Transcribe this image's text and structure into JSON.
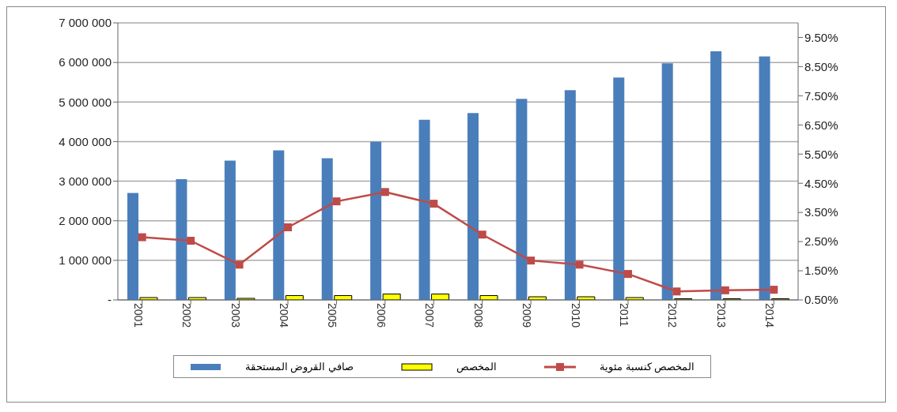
{
  "chart_data": {
    "type": "bar",
    "categories": [
      "2001",
      "2002",
      "2003",
      "2004",
      "2005",
      "2006",
      "2007",
      "2008",
      "2009",
      "2010",
      "2011",
      "2012",
      "2013",
      "2014"
    ],
    "series": [
      {
        "name": "صافي القروض المستحقة",
        "color": "#4a7ebb",
        "values": [
          2700000,
          3050000,
          3520000,
          3780000,
          3580000,
          4000000,
          4550000,
          4720000,
          5080000,
          5300000,
          5620000,
          5980000,
          6280000,
          6150000
        ]
      },
      {
        "name": "المخصص",
        "color": "#ffff00",
        "values": [
          60000,
          60000,
          40000,
          110000,
          110000,
          150000,
          150000,
          110000,
          80000,
          80000,
          60000,
          30000,
          30000,
          30000
        ]
      },
      {
        "name": "المخصص كنسبة مئوية",
        "type": "line",
        "axis": "y2",
        "color": "#be4b48",
        "marker": "square",
        "values": [
          2.65,
          2.53,
          1.71,
          2.99,
          3.88,
          4.2,
          3.8,
          2.74,
          1.85,
          1.71,
          1.39,
          0.79,
          0.83,
          0.85
        ]
      }
    ],
    "ylim": [
      0,
      7000000
    ],
    "yticks": [
      {
        "value": 0,
        "label": "-"
      },
      {
        "value": 1000000,
        "label": "1 000 000"
      },
      {
        "value": 2000000,
        "label": "2 000 000"
      },
      {
        "value": 3000000,
        "label": "3 000 000"
      },
      {
        "value": 4000000,
        "label": "4 000 000"
      },
      {
        "value": 5000000,
        "label": "5 000 000"
      },
      {
        "value": 6000000,
        "label": "6 000 000"
      },
      {
        "value": 7000000,
        "label": "7 000 000"
      }
    ],
    "y2lim": [
      0.5,
      10
    ],
    "y2ticks": [
      {
        "value": 0.5,
        "label": "0.50%"
      },
      {
        "value": 1.5,
        "label": "1.50%"
      },
      {
        "value": 2.5,
        "label": "2.50%"
      },
      {
        "value": 3.5,
        "label": "3.50%"
      },
      {
        "value": 4.5,
        "label": "4.50%"
      },
      {
        "value": 5.5,
        "label": "5.50%"
      },
      {
        "value": 6.5,
        "label": "6.50%"
      },
      {
        "value": 7.5,
        "label": "7.50%"
      },
      {
        "value": 8.5,
        "label": "8.50%"
      },
      {
        "value": 9.5,
        "label": "9.50%"
      }
    ],
    "grid": "y",
    "legend": "bottom"
  }
}
